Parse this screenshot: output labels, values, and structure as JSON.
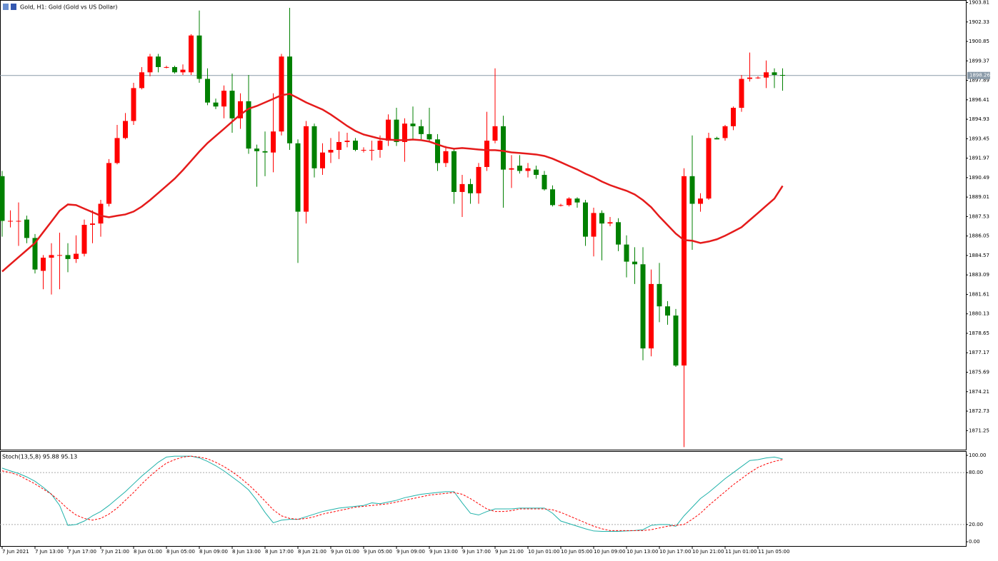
{
  "chart_data": [
    {
      "type": "candlestick",
      "title": "Gold, H1: Gold (Gold vs US Dollar)",
      "categories": [
        "7 Jun 2021",
        null,
        null,
        null,
        "7 Jun 13:00",
        null,
        null,
        null,
        "7 Jun 17:00",
        null,
        null,
        null,
        "7 Jun 21:00",
        null,
        null,
        null,
        "8 Jun 01:00",
        null,
        null,
        null,
        "8 Jun 05:00",
        null,
        null,
        null,
        "8 Jun 09:00",
        null,
        null,
        null,
        "8 Jun 13:00",
        null,
        null,
        null,
        "8 Jun 17:00",
        null,
        null,
        null,
        "8 Jun 21:00",
        null,
        null,
        null,
        "9 Jun 01:00",
        null,
        null,
        null,
        "9 Jun 05:00",
        null,
        null,
        null,
        "9 Jun 09:00",
        null,
        null,
        null,
        "9 Jun 13:00",
        null,
        null,
        null,
        "9 Jun 17:00",
        null,
        null,
        null,
        "9 Jun 21:00",
        null,
        null,
        null,
        "10 Jun 01:00",
        null,
        null,
        null,
        "10 Jun 05:00",
        null,
        null,
        null,
        "10 Jun 09:00",
        null,
        null,
        null,
        "10 Jun 13:00",
        null,
        null,
        null,
        "10 Jun 17:00",
        null,
        null,
        null,
        "10 Jun 21:00",
        null,
        null,
        null,
        "11 Jun 01:00",
        null,
        null,
        null,
        "11 Jun 05:00",
        null,
        null,
        null
      ],
      "open": [
        1890.6,
        1887.2,
        1887.2,
        1887.3,
        1885.9,
        1883.4,
        1884.4,
        1884.6,
        1884.6,
        1884.3,
        1884.7,
        1886.9,
        1887.0,
        1888.5,
        1891.6,
        1893.5,
        1894.8,
        1897.3,
        1898.5,
        1899.7,
        1898.9,
        1898.9,
        1898.5,
        1898.5,
        1901.3,
        1898.0,
        1896.2,
        1895.9,
        1897.1,
        1895.0,
        1896.3,
        1892.7,
        1892.5,
        1892.4,
        1894.0,
        1899.7,
        1893.1,
        1887.9,
        1894.4,
        1891.2,
        1892.4,
        1892.6,
        1893.2,
        1893.3,
        1892.6,
        1892.6,
        1892.6,
        1893.3,
        1894.9,
        1893.2,
        1894.6,
        1894.4,
        1893.8,
        1893.4,
        1891.6,
        1892.5,
        1889.4,
        1890.0,
        1889.3,
        1891.3,
        1893.3,
        1894.4,
        1891.1,
        1891.4,
        1891.0,
        1891.1,
        1890.7,
        1889.6,
        1888.4,
        1888.4,
        1888.9,
        1888.6,
        1886.0,
        1887.8,
        1887.0,
        1887.1,
        1885.4,
        1884.1,
        1883.9,
        1877.5,
        1882.4,
        1880.7,
        1880.0,
        1876.2,
        1890.6,
        1888.5,
        1888.9,
        1893.5,
        1893.5,
        1894.4,
        1895.8,
        1898.0,
        1898.1,
        1898.1,
        1898.5,
        1898.3
      ],
      "high": [
        1891.0,
        1888.0,
        1888.6,
        1887.6,
        1886.2,
        1884.6,
        1885.5,
        1886.3,
        1885.5,
        1886.1,
        1887.3,
        1888.0,
        1888.8,
        1891.9,
        1894.5,
        1895.4,
        1897.7,
        1898.9,
        1899.9,
        1899.9,
        1899.0,
        1899.0,
        1899.1,
        1901.4,
        1903.2,
        1898.8,
        1896.5,
        1897.5,
        1898.4,
        1896.9,
        1898.3,
        1893.0,
        1894.0,
        1896.9,
        1899.9,
        1903.4,
        1893.4,
        1894.8,
        1894.6,
        1893.1,
        1893.5,
        1894.0,
        1893.9,
        1893.5,
        1892.8,
        1893.3,
        1893.7,
        1895.3,
        1895.8,
        1895.0,
        1895.9,
        1894.9,
        1895.8,
        1893.8,
        1892.9,
        1892.7,
        1890.7,
        1890.4,
        1891.6,
        1895.5,
        1898.8,
        1895.2,
        1892.2,
        1892.2,
        1891.6,
        1891.4,
        1891.0,
        1889.9,
        1888.5,
        1889.0,
        1889.0,
        1888.8,
        1888.2,
        1888.0,
        1887.5,
        1887.4,
        1886.1,
        1885.2,
        1885.2,
        1883.5,
        1884.0,
        1881.1,
        1880.5,
        1891.2,
        1893.7,
        1889.3,
        1893.9,
        1893.6,
        1894.5,
        1895.9,
        1898.3,
        1900.0,
        1898.2,
        1899.4,
        1898.8,
        1898.8
      ],
      "low": [
        1886.0,
        1886.7,
        1885.3,
        1885.5,
        1883.2,
        1882.0,
        1881.6,
        1882.0,
        1883.3,
        1884.0,
        1884.5,
        1885.5,
        1886.0,
        1888.3,
        1891.5,
        1893.4,
        1894.5,
        1897.2,
        1898.2,
        1898.5,
        1898.8,
        1898.4,
        1898.3,
        1898.3,
        1897.7,
        1896.0,
        1895.7,
        1895.0,
        1893.9,
        1894.2,
        1892.3,
        1889.8,
        1890.6,
        1890.9,
        1893.7,
        1892.6,
        1884.0,
        1887.0,
        1890.5,
        1890.7,
        1891.6,
        1891.9,
        1892.8,
        1892.5,
        1892.4,
        1891.8,
        1892.0,
        1892.9,
        1892.9,
        1891.7,
        1893.4,
        1893.4,
        1893.2,
        1891.0,
        1891.3,
        1888.5,
        1887.5,
        1888.5,
        1888.5,
        1891.0,
        1893.1,
        1888.2,
        1889.7,
        1890.8,
        1890.5,
        1890.4,
        1889.5,
        1888.3,
        1888.3,
        1888.3,
        1888.2,
        1885.3,
        1884.5,
        1884.2,
        1886.8,
        1884.9,
        1882.9,
        1882.4,
        1876.6,
        1876.9,
        1879.5,
        1879.3,
        1876.1,
        1870.0,
        1885.0,
        1887.9,
        1888.8,
        1893.4,
        1893.3,
        1894.1,
        1895.5,
        1897.8,
        1898.0,
        1897.3,
        1897.3,
        1897.1
      ],
      "close": [
        1887.2,
        1887.2,
        1887.2,
        1885.9,
        1883.5,
        1884.4,
        1884.6,
        1884.6,
        1884.3,
        1884.7,
        1886.9,
        1887.0,
        1888.5,
        1891.6,
        1893.5,
        1894.8,
        1897.3,
        1898.5,
        1899.7,
        1898.9,
        1898.9,
        1898.5,
        1898.7,
        1901.3,
        1898.0,
        1896.2,
        1895.9,
        1897.1,
        1895.0,
        1896.3,
        1892.7,
        1892.5,
        1892.4,
        1894.0,
        1899.7,
        1893.1,
        1887.9,
        1894.4,
        1891.2,
        1892.4,
        1892.6,
        1893.2,
        1893.3,
        1892.6,
        1892.6,
        1892.6,
        1893.3,
        1894.9,
        1893.2,
        1894.6,
        1894.4,
        1893.8,
        1893.4,
        1891.6,
        1892.5,
        1889.4,
        1890.0,
        1889.3,
        1891.3,
        1893.3,
        1894.4,
        1891.1,
        1891.2,
        1891.0,
        1891.2,
        1890.7,
        1889.6,
        1888.4,
        1888.4,
        1888.9,
        1888.6,
        1886.0,
        1887.8,
        1887.0,
        1887.1,
        1885.4,
        1884.1,
        1883.9,
        1877.5,
        1882.4,
        1880.7,
        1880.0,
        1876.2,
        1890.6,
        1888.5,
        1888.9,
        1893.5,
        1893.4,
        1894.4,
        1895.8,
        1898.0,
        1898.1,
        1898.1,
        1898.5,
        1898.3,
        1898.26
      ],
      "up_color": "#ff0000",
      "down_color": "#008000",
      "ma": {
        "color": "#e51b1b",
        "values": [
          1883.35,
          1883.9,
          1884.44,
          1884.98,
          1885.52,
          1886.34,
          1887.15,
          1887.97,
          1888.45,
          1888.4,
          1888.13,
          1887.86,
          1887.59,
          1887.48,
          1887.59,
          1887.69,
          1887.91,
          1888.29,
          1888.78,
          1889.32,
          1889.86,
          1890.41,
          1891.06,
          1891.76,
          1892.47,
          1893.12,
          1893.66,
          1894.2,
          1894.75,
          1895.29,
          1895.73,
          1895.94,
          1896.21,
          1896.48,
          1896.76,
          1896.86,
          1896.54,
          1896.21,
          1895.94,
          1895.67,
          1895.29,
          1894.86,
          1894.42,
          1894.04,
          1893.77,
          1893.61,
          1893.45,
          1893.39,
          1893.34,
          1893.34,
          1893.39,
          1893.34,
          1893.23,
          1893.01,
          1892.8,
          1892.69,
          1892.74,
          1892.69,
          1892.63,
          1892.58,
          1892.58,
          1892.52,
          1892.41,
          1892.36,
          1892.31,
          1892.25,
          1892.14,
          1891.93,
          1891.66,
          1891.38,
          1891.11,
          1890.79,
          1890.52,
          1890.19,
          1889.92,
          1889.7,
          1889.49,
          1889.21,
          1888.78,
          1888.24,
          1887.53,
          1886.88,
          1886.23,
          1885.74,
          1885.69,
          1885.52,
          1885.63,
          1885.8,
          1886.07,
          1886.39,
          1886.72,
          1887.26,
          1887.8,
          1888.35,
          1888.89,
          1889.86
        ]
      },
      "last_price": 1898.26,
      "ylim": [
        1869.8,
        1904.0
      ],
      "yticks": [
        1903.81,
        1902.33,
        1900.85,
        1899.37,
        1897.89,
        1896.41,
        1894.93,
        1893.45,
        1891.97,
        1890.49,
        1889.01,
        1887.53,
        1886.05,
        1884.57,
        1883.09,
        1881.61,
        1880.13,
        1878.65,
        1877.17,
        1875.69,
        1874.21,
        1872.73,
        1871.25
      ]
    },
    {
      "type": "line",
      "title": "Stoch(13,5,8) 95.88 95.13",
      "series": [
        {
          "color": "#20b2aa",
          "values": [
            85.2,
            82,
            79,
            75,
            70,
            63,
            55,
            42,
            19,
            20,
            24,
            30,
            35,
            42,
            50,
            58,
            67,
            76,
            84,
            92,
            98,
            99,
            99,
            99,
            97,
            93,
            88,
            82,
            75,
            68,
            60,
            48,
            34,
            22,
            25,
            26,
            26,
            29,
            32,
            35,
            37,
            39,
            40,
            41,
            42,
            45,
            44,
            46,
            48,
            51,
            53,
            55,
            56,
            57,
            58,
            58,
            45,
            33,
            31,
            35,
            38,
            38,
            38,
            39,
            39,
            39,
            39,
            33,
            24,
            21,
            18,
            15,
            12.5,
            12,
            12,
            12,
            12.5,
            13,
            14,
            19,
            20,
            20,
            18,
            30,
            40,
            50,
            57,
            65,
            73,
            80,
            87,
            94,
            95,
            97,
            98,
            95.88
          ]
        },
        {
          "color": "#ff0000",
          "dash": true,
          "values": [
            82,
            80,
            77,
            72,
            67,
            61,
            55,
            47,
            38,
            31,
            27,
            25,
            27,
            32,
            39,
            48,
            57,
            67,
            76,
            84,
            91,
            95,
            98,
            99,
            98,
            96,
            92,
            87,
            81,
            74,
            66,
            57,
            47,
            37,
            30,
            27,
            26,
            27,
            29,
            32,
            34,
            36,
            38,
            40,
            41,
            42,
            43,
            44,
            46,
            48,
            50,
            52,
            54,
            55,
            56,
            57,
            55,
            50,
            44,
            38,
            35,
            35,
            36,
            38,
            38,
            38,
            38,
            37,
            34,
            30,
            26,
            22,
            18,
            15,
            13,
            13,
            13,
            13,
            13,
            14,
            16,
            18,
            19,
            20,
            26,
            33,
            42,
            50,
            58,
            66,
            73,
            80,
            86,
            90,
            93,
            95.13
          ]
        }
      ],
      "levels": [
        80,
        20
      ],
      "ylim": [
        -4.9,
        104.1
      ],
      "yticks": [
        {
          "value": 100,
          "label": "100.00"
        },
        {
          "value": 80,
          "label": "80.00"
        },
        {
          "value": 20,
          "label": "20.00"
        },
        {
          "value": 0,
          "label": "0.00"
        }
      ]
    }
  ]
}
